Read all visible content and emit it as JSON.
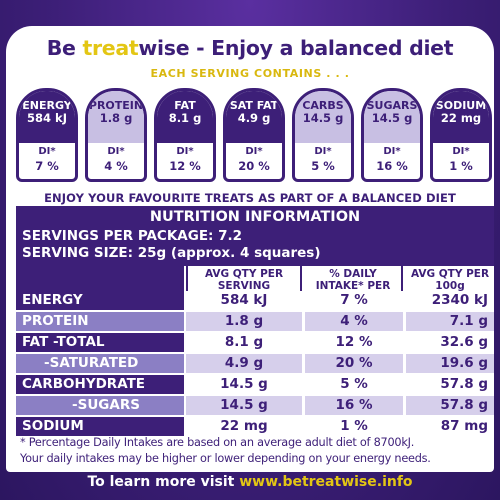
{
  "headline": {
    "part1": "Be ",
    "treat": "treat",
    "part2": "wise - Enjoy a balanced diet"
  },
  "each_serving": "EACH SERVING CONTAINS . . .",
  "di_icons": [
    {
      "name": "ENERGY",
      "value": "584 kJ",
      "di_label": "DI*",
      "di_pct": "7 %",
      "style": "dark"
    },
    {
      "name": "PROTEIN",
      "value": "1.8 g",
      "di_label": "DI*",
      "di_pct": "4 %",
      "style": "light"
    },
    {
      "name": "FAT",
      "value": "8.1 g",
      "di_label": "DI*",
      "di_pct": "12 %",
      "style": "dark"
    },
    {
      "name": "SAT FAT",
      "value": "4.9 g",
      "di_label": "DI*",
      "di_pct": "20 %",
      "style": "dark"
    },
    {
      "name": "CARBS",
      "value": "14.5 g",
      "di_label": "DI*",
      "di_pct": "5 %",
      "style": "light"
    },
    {
      "name": "SUGARS",
      "value": "14.5 g",
      "di_label": "DI*",
      "di_pct": "16 %",
      "style": "light"
    },
    {
      "name": "SODIUM",
      "value": "22 mg",
      "di_label": "DI*",
      "di_pct": "1 %",
      "style": "dark"
    }
  ],
  "enjoy_text": "ENJOY YOUR FAVOURITE TREATS AS PART OF A BALANCED DIET",
  "nutrition": {
    "title": "NUTRITION INFORMATION",
    "servings_per_package": "SERVINGS PER PACKAGE: 7.2",
    "serving_size": "SERVING SIZE: 25g (approx. 4 squares)",
    "col_headers": [
      "AVG QTY PER SERVING",
      "% DAILY INTAKE* PER SERVING",
      "AVG QTY PER 100g"
    ],
    "rows": [
      {
        "name": "ENERGY",
        "per_serving": "584 kJ",
        "di": "7 %",
        "per_100g": "2340 kJ",
        "shade": "dk"
      },
      {
        "name": "PROTEIN",
        "per_serving": "1.8 g",
        "di": "4 %",
        "per_100g": "7.1 g",
        "shade": "lt"
      },
      {
        "name": "FAT -TOTAL",
        "per_serving": "8.1 g",
        "di": "12 %",
        "per_100g": "32.6 g",
        "shade": "dk"
      },
      {
        "name": "-SATURATED",
        "per_serving": "4.9 g",
        "di": "20 %",
        "per_100g": "19.6 g",
        "shade": "lt"
      },
      {
        "name": "CARBOHYDRATE",
        "per_serving": "14.5 g",
        "di": "5 %",
        "per_100g": "57.8 g",
        "shade": "dk"
      },
      {
        "name": "-SUGARS",
        "per_serving": "14.5 g",
        "di": "16 %",
        "per_100g": "57.8 g",
        "shade": "lt"
      },
      {
        "name": "SODIUM",
        "per_serving": "22 mg",
        "di": "1 %",
        "per_100g": "87 mg",
        "shade": "dk"
      }
    ]
  },
  "footnote": {
    "line1": "* Percentage Daily Intakes are based on an average adult diet of 8700kJ.",
    "line2": "Your daily intakes may be higher or lower depending on your energy needs."
  },
  "learn_more": {
    "prefix": "To learn more visit ",
    "url": "www.betreatwise.info"
  },
  "colors": {
    "purple": "#3d1f78",
    "lavender": "#8b7fc4",
    "light_lavender": "#d6cfeb",
    "gold": "#e3c614"
  }
}
